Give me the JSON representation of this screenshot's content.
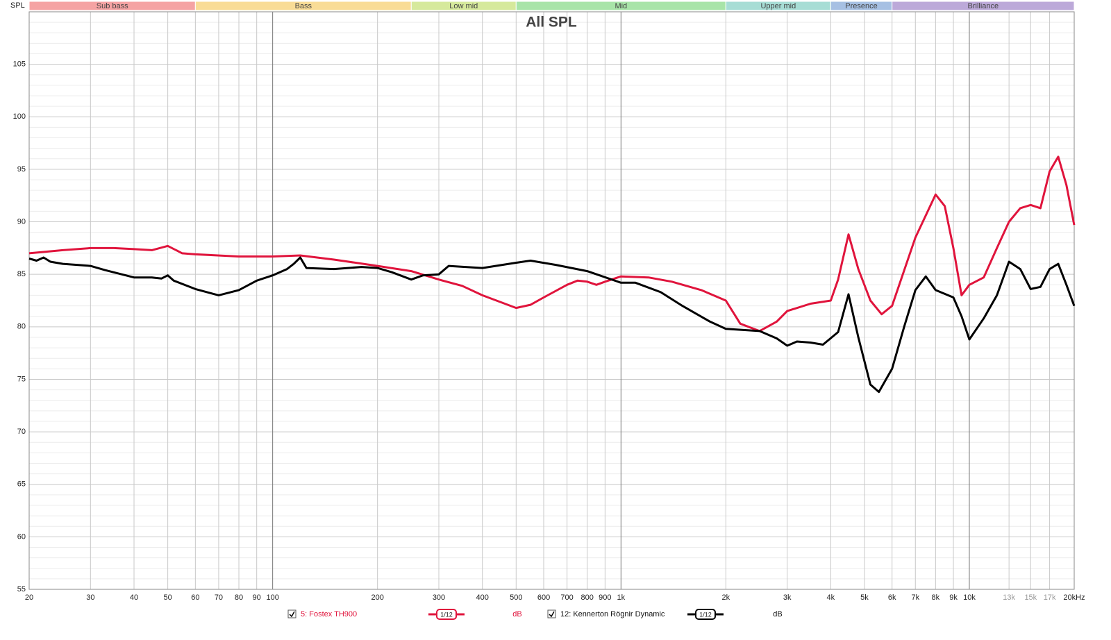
{
  "chart_data": {
    "type": "line",
    "title": "All SPL",
    "y_label": "SPL",
    "log_x": true,
    "grid": true,
    "xlim": [
      20,
      20000
    ],
    "ylim": [
      55,
      110
    ],
    "xticks": [
      20,
      30,
      40,
      50,
      60,
      70,
      80,
      90,
      100,
      200,
      300,
      400,
      500,
      600,
      700,
      800,
      900,
      {
        "value": 1000,
        "label": "1k"
      },
      {
        "value": 2000,
        "label": "2k"
      },
      {
        "value": 3000,
        "label": "3k"
      },
      {
        "value": 4000,
        "label": "4k"
      },
      {
        "value": 5000,
        "label": "5k"
      },
      {
        "value": 6000,
        "label": "6k"
      },
      {
        "value": 7000,
        "label": "7k"
      },
      {
        "value": 8000,
        "label": "8k"
      },
      {
        "value": 9000,
        "label": "9k"
      },
      {
        "value": 10000,
        "label": "10k"
      },
      {
        "value": 13000,
        "label": "13k"
      },
      {
        "value": 15000,
        "label": "15k"
      },
      {
        "value": 17000,
        "label": "17k"
      },
      {
        "value": 20000,
        "label": "20kHz"
      }
    ],
    "yticks": [
      55,
      60,
      65,
      70,
      75,
      80,
      85,
      90,
      95,
      100,
      105
    ],
    "bands": [
      {
        "name": "Sub bass",
        "start": 20,
        "end": 60,
        "color": "#f5a3a3"
      },
      {
        "name": "Bass",
        "start": 60,
        "end": 250,
        "color": "#f9dc96"
      },
      {
        "name": "Low mid",
        "start": 250,
        "end": 500,
        "color": "#d6e99c"
      },
      {
        "name": "Mid",
        "start": 500,
        "end": 2000,
        "color": "#a8e4a8"
      },
      {
        "name": "Upper mid",
        "start": 2000,
        "end": 4000,
        "color": "#a7ddd5"
      },
      {
        "name": "Presence",
        "start": 4000,
        "end": 6000,
        "color": "#a6c0e3"
      },
      {
        "name": "Brilliance",
        "start": 6000,
        "end": 20000,
        "color": "#bca9d9"
      }
    ],
    "series": [
      {
        "name": "5: Fostex TH900",
        "color": "#e0143c",
        "smoothing": "1/12",
        "unit": "dB",
        "x": [
          20,
          25,
          30,
          35,
          40,
          45,
          50,
          55,
          60,
          80,
          100,
          120,
          150,
          200,
          250,
          300,
          350,
          400,
          500,
          550,
          600,
          700,
          750,
          800,
          850,
          900,
          1000,
          1200,
          1400,
          1700,
          2000,
          2200,
          2500,
          2800,
          3000,
          3500,
          4000,
          4200,
          4500,
          4800,
          5200,
          5600,
          6000,
          7000,
          8000,
          8500,
          9000,
          9500,
          10000,
          11000,
          12000,
          13000,
          14000,
          15000,
          16000,
          17000,
          18000,
          19000,
          20000
        ],
        "values": [
          87.0,
          87.3,
          87.5,
          87.5,
          87.4,
          87.3,
          87.7,
          87.0,
          86.9,
          86.7,
          86.7,
          86.8,
          86.4,
          85.8,
          85.3,
          84.5,
          83.9,
          83.0,
          81.8,
          82.1,
          82.8,
          84.0,
          84.4,
          84.3,
          84.0,
          84.3,
          84.8,
          84.7,
          84.3,
          83.5,
          82.5,
          80.3,
          79.6,
          80.5,
          81.5,
          82.2,
          82.5,
          84.5,
          88.8,
          85.5,
          82.5,
          81.2,
          82.0,
          88.5,
          92.6,
          91.5,
          87.5,
          83.0,
          84.0,
          84.7,
          87.5,
          90.0,
          91.3,
          91.6,
          91.3,
          94.8,
          96.2,
          93.5,
          89.7
        ]
      },
      {
        "name": "12: Kennerton Rögnir Dynamic",
        "color": "#000000",
        "smoothing": "1/12",
        "unit": "dB",
        "x": [
          20,
          21,
          22,
          23,
          25,
          30,
          33,
          40,
          45,
          48,
          50,
          52,
          60,
          70,
          80,
          90,
          100,
          110,
          115,
          120,
          125,
          150,
          180,
          200,
          220,
          250,
          270,
          300,
          320,
          400,
          500,
          550,
          650,
          800,
          1000,
          1100,
          1300,
          1500,
          1800,
          2000,
          2500,
          2800,
          3000,
          3200,
          3500,
          3800,
          4200,
          4500,
          4800,
          5200,
          5500,
          6000,
          6500,
          7000,
          7500,
          8000,
          9000,
          9500,
          10000,
          11000,
          12000,
          13000,
          14000,
          15000,
          16000,
          17000,
          18000,
          19000,
          20000
        ],
        "values": [
          86.5,
          86.3,
          86.6,
          86.2,
          86.0,
          85.8,
          85.4,
          84.7,
          84.7,
          84.6,
          84.9,
          84.4,
          83.6,
          83.0,
          83.5,
          84.4,
          84.9,
          85.5,
          86.0,
          86.6,
          85.6,
          85.5,
          85.7,
          85.6,
          85.2,
          84.5,
          84.9,
          85.0,
          85.8,
          85.6,
          86.1,
          86.3,
          85.9,
          85.3,
          84.2,
          84.2,
          83.3,
          82.0,
          80.5,
          79.8,
          79.6,
          78.9,
          78.2,
          78.6,
          78.5,
          78.3,
          79.5,
          83.1,
          79.0,
          74.5,
          73.8,
          76.0,
          80.0,
          83.5,
          84.8,
          83.5,
          82.8,
          81.0,
          78.8,
          80.8,
          83.0,
          86.2,
          85.5,
          83.6,
          83.8,
          85.5,
          86.0,
          84.0,
          82.0
        ]
      }
    ]
  }
}
